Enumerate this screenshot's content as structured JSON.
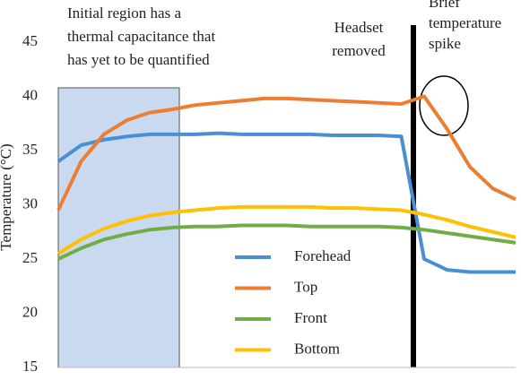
{
  "chart_data": {
    "type": "line",
    "y_label": "Temperature (°C)",
    "annotations": [
      {
        "lines": [
          "Initial region has a",
          "thermal capacitance that",
          "has yet to be quantified"
        ]
      },
      {
        "lines": [
          "Headset",
          "removed"
        ]
      },
      {
        "lines": [
          "Brief",
          "temperature",
          "spike"
        ]
      }
    ],
    "x": [
      0,
      5,
      10,
      15,
      20,
      25,
      30,
      35,
      40,
      45,
      50,
      55,
      60,
      65,
      70,
      75,
      80,
      85,
      90,
      95,
      100
    ],
    "xlim": [
      0,
      100
    ],
    "ylim": [
      15,
      45
    ],
    "yticks": [
      15,
      20,
      25,
      30,
      35,
      40,
      45
    ],
    "series": [
      {
        "name": "Forehead",
        "color": "#4a8fd4",
        "values": [
          34,
          35.5,
          36,
          36.3,
          36.5,
          36.5,
          36.5,
          36.6,
          36.5,
          36.5,
          36.5,
          36.5,
          36.4,
          36.4,
          36.4,
          36.3,
          25,
          24,
          23.8,
          23.8,
          23.8
        ]
      },
      {
        "name": "Top",
        "color": "#ed7d31",
        "values": [
          29.5,
          34,
          36.5,
          37.8,
          38.5,
          38.8,
          39.2,
          39.4,
          39.6,
          39.8,
          39.8,
          39.7,
          39.6,
          39.5,
          39.4,
          39.3,
          40,
          37,
          33.5,
          31.5,
          30.5
        ]
      },
      {
        "name": "Front",
        "color": "#70ad47",
        "values": [
          25,
          26,
          26.8,
          27.3,
          27.7,
          27.9,
          28,
          28,
          28.1,
          28.1,
          28.1,
          28,
          28,
          28,
          28,
          27.9,
          27.7,
          27.4,
          27.1,
          26.8,
          26.5
        ]
      },
      {
        "name": "Bottom",
        "color": "#ffc000",
        "values": [
          25.5,
          26.8,
          27.8,
          28.5,
          29,
          29.3,
          29.5,
          29.7,
          29.8,
          29.8,
          29.8,
          29.8,
          29.7,
          29.7,
          29.6,
          29.5,
          29.1,
          28.6,
          28,
          27.5,
          27
        ]
      }
    ]
  }
}
